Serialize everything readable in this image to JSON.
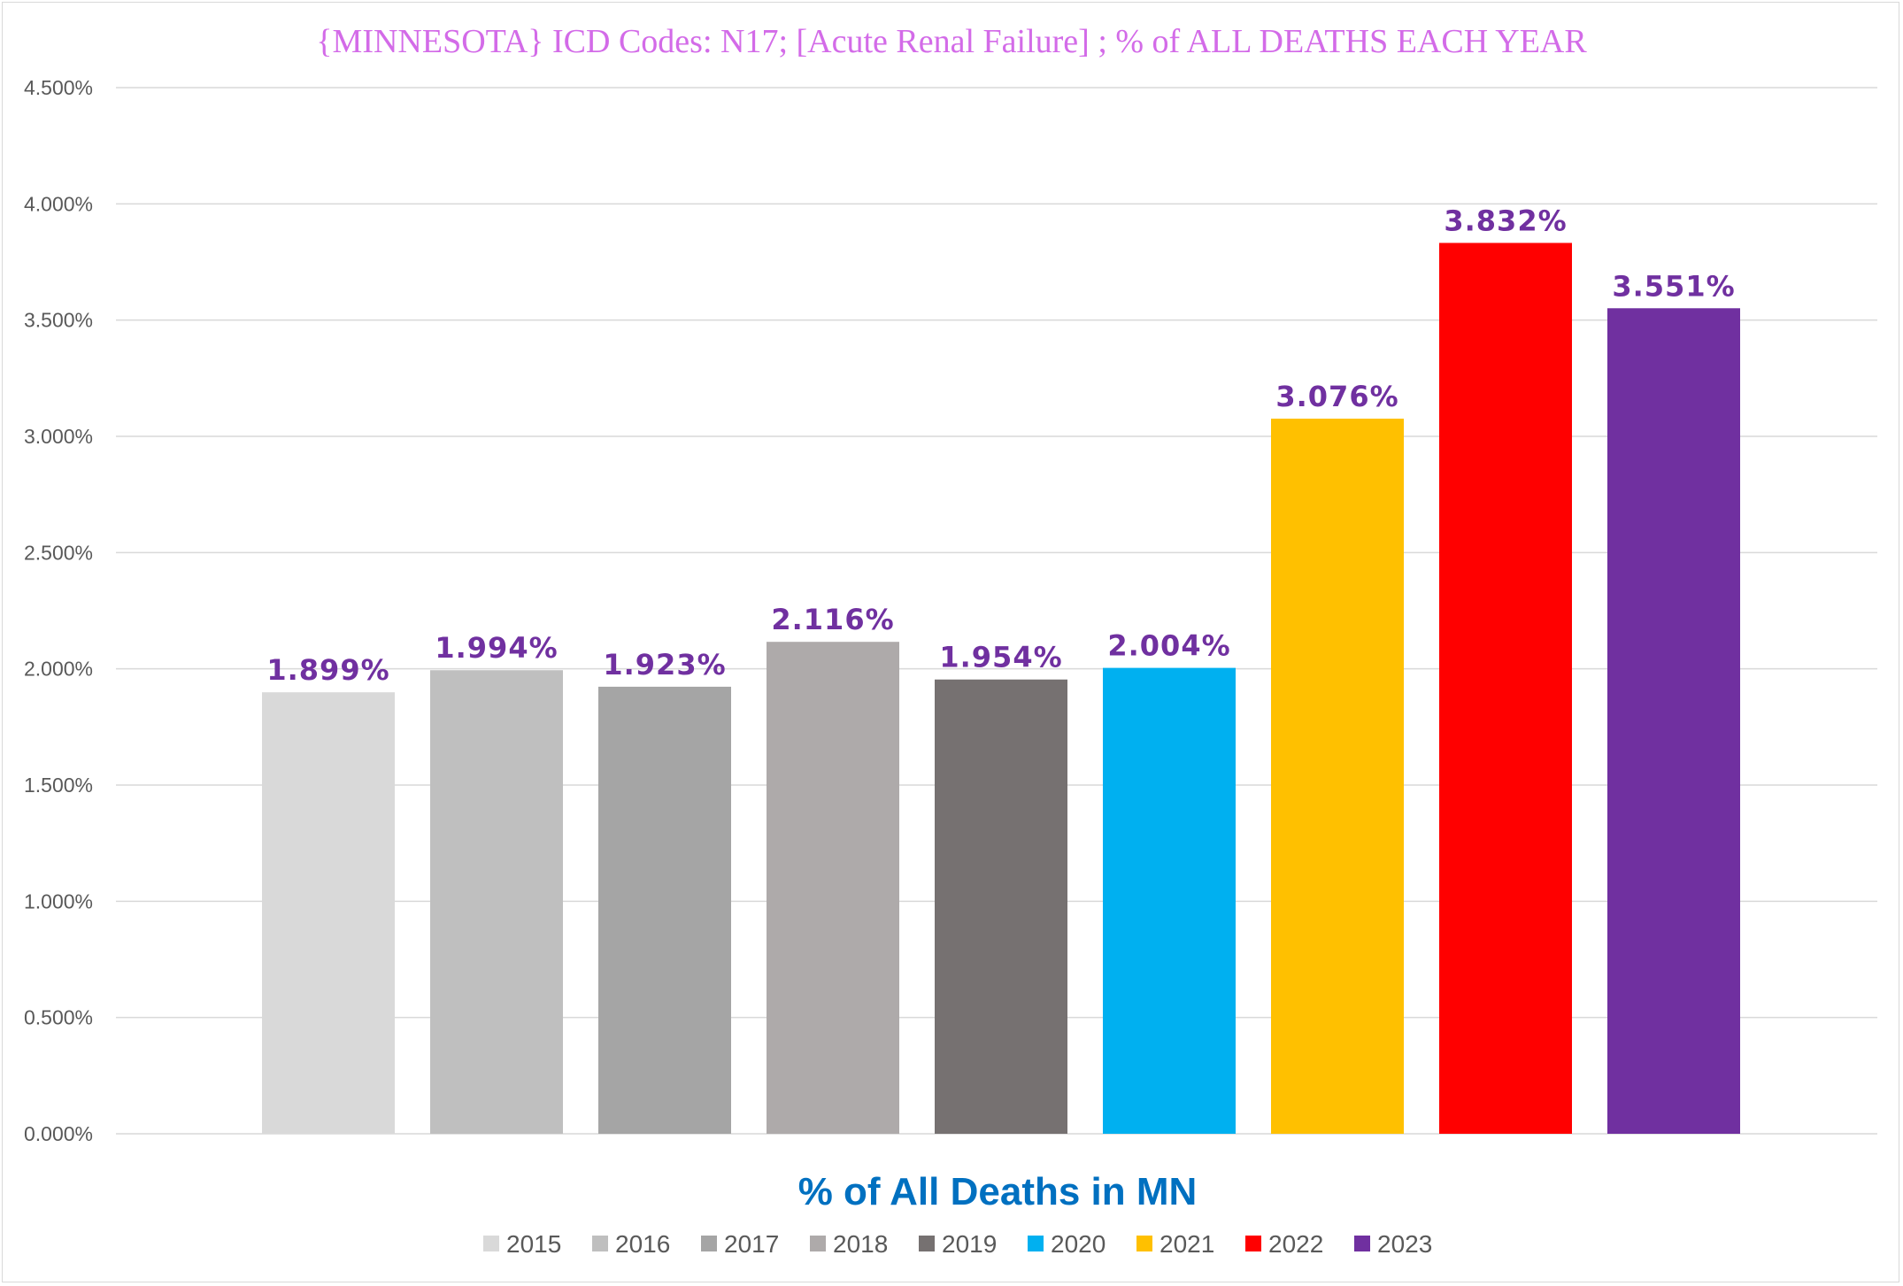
{
  "chart_data": {
    "type": "bar",
    "title": "{MINNESOTA}  ICD Codes: N17;  [Acute Renal Failure] ; % of ALL DEATHS EACH YEAR",
    "xlabel": "% of All Deaths in MN",
    "ylabel": "",
    "ylim": [
      0,
      4.5
    ],
    "yticks": [
      "0.000%",
      "0.500%",
      "1.000%",
      "1.500%",
      "2.000%",
      "2.500%",
      "3.000%",
      "3.500%",
      "4.000%",
      "4.500%"
    ],
    "ytick_values": [
      0,
      0.5,
      1.0,
      1.5,
      2.0,
      2.5,
      3.0,
      3.5,
      4.0,
      4.5
    ],
    "grid": true,
    "legend_position": "bottom",
    "series": [
      {
        "name": "2015",
        "value": 1.899,
        "label": "1.899%",
        "color": "#d9d9d9"
      },
      {
        "name": "2016",
        "value": 1.994,
        "label": "1.994%",
        "color": "#bfbfbf"
      },
      {
        "name": "2017",
        "value": 1.923,
        "label": "1.923%",
        "color": "#a5a5a5"
      },
      {
        "name": "2018",
        "value": 2.116,
        "label": "2.116%",
        "color": "#aeaaaa"
      },
      {
        "name": "2019",
        "value": 1.954,
        "label": "1.954%",
        "color": "#767171"
      },
      {
        "name": "2020",
        "value": 2.004,
        "label": "2.004%",
        "color": "#00b0f0"
      },
      {
        "name": "2021",
        "value": 3.076,
        "label": "3.076%",
        "color": "#ffc000"
      },
      {
        "name": "2022",
        "value": 3.832,
        "label": "3.832%",
        "color": "#ff0000"
      },
      {
        "name": "2023",
        "value": 3.551,
        "label": "3.551%",
        "color": "#7030a0"
      }
    ]
  }
}
